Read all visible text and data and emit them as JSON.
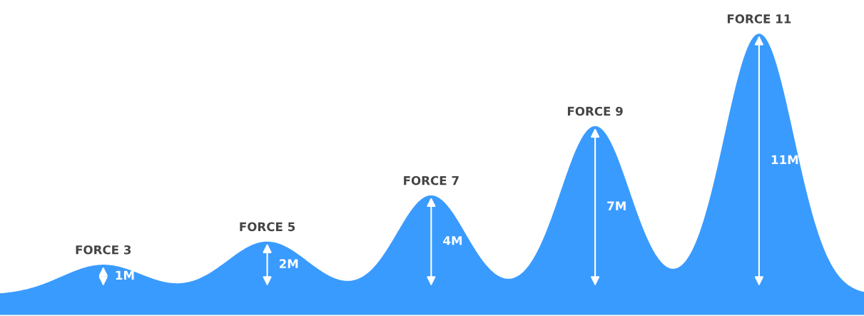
{
  "chart_data": {
    "type": "other",
    "categories": [
      "FORCE 3",
      "FORCE 5",
      "FORCE 7",
      "FORCE 9",
      "FORCE 11"
    ],
    "values": [
      1,
      2,
      4,
      7,
      11
    ],
    "value_labels": [
      "1M",
      "2M",
      "4M",
      "7M",
      "11M"
    ],
    "color": "#3a9bff"
  }
}
